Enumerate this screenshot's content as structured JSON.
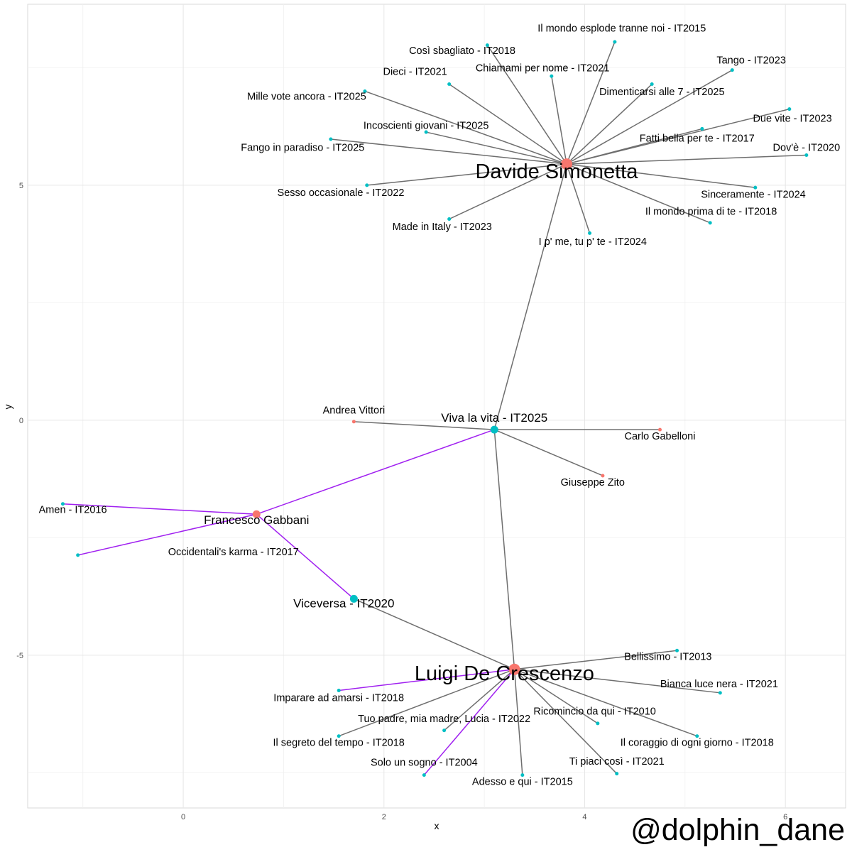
{
  "chart_data": {
    "type": "network",
    "xlabel": "x",
    "ylabel": "y",
    "xlim": [
      -1.55,
      6.6
    ],
    "ylim": [
      -8.25,
      8.85
    ],
    "xticks": [
      0,
      2,
      4,
      6
    ],
    "yticks": [
      -5,
      0,
      5
    ],
    "grid": true,
    "colors": {
      "person": "#f8766d",
      "song": "#00bfc4",
      "edge": "#6e6e6e",
      "highlight_edge": "#a020f0"
    },
    "nodes": [
      {
        "id": "ds",
        "label": "Davide Simonetta",
        "kind": "person",
        "size": "large",
        "x": 3.82,
        "y": 5.45,
        "lx": 3.72,
        "ly": 5.15
      },
      {
        "id": "lc",
        "label": "Luigi De Crescenzo",
        "kind": "person",
        "size": "large",
        "x": 3.3,
        "y": -5.3,
        "lx": 3.2,
        "ly": -5.53
      },
      {
        "id": "fg",
        "label": "Francesco Gabbani",
        "kind": "person",
        "size": "medium",
        "x": 0.73,
        "y": -2.0,
        "lx": 0.73,
        "ly": -2.21
      },
      {
        "id": "vv",
        "label": "Viva la vita - IT2025",
        "kind": "song",
        "size": "medium",
        "x": 3.1,
        "y": -0.2,
        "lx": 3.1,
        "ly": -0.03
      },
      {
        "id": "vc",
        "label": "Viceversa - IT2020",
        "kind": "song",
        "size": "medium",
        "x": 1.7,
        "y": -3.8,
        "lx": 1.6,
        "ly": -3.98
      },
      {
        "id": "av",
        "label": "Andrea Vittori",
        "kind": "person",
        "size": "small",
        "x": 1.7,
        "y": -0.03,
        "lx": 1.7,
        "ly": 0.14
      },
      {
        "id": "cg",
        "label": "Carlo Gabelloni",
        "kind": "person",
        "size": "small",
        "x": 4.75,
        "y": -0.2,
        "lx": 4.75,
        "ly": -0.41
      },
      {
        "id": "gz",
        "label": "Giuseppe Zito",
        "kind": "person",
        "size": "small",
        "x": 4.18,
        "y": -1.18,
        "lx": 4.08,
        "ly": -1.39
      },
      {
        "id": "amen",
        "label": "Amen - IT2016",
        "kind": "song",
        "size": "small",
        "x": -1.2,
        "y": -1.78,
        "lx": -1.1,
        "ly": -1.97
      },
      {
        "id": "occ",
        "label": "Occidentali's karma - IT2017",
        "kind": "song",
        "size": "small",
        "x": -1.05,
        "y": -2.87,
        "lx": 0.5,
        "ly": -2.87
      },
      {
        "id": "s1",
        "label": "Il mondo esplode tranne noi - IT2015",
        "kind": "song",
        "size": "small",
        "x": 4.3,
        "y": 8.05,
        "lx": 4.37,
        "ly": 8.27
      },
      {
        "id": "s2",
        "label": "Così sbagliato - IT2018",
        "kind": "song",
        "size": "small",
        "x": 3.03,
        "y": 7.98,
        "lx": 2.78,
        "ly": 7.79
      },
      {
        "id": "s3",
        "label": "Tango - IT2023",
        "kind": "song",
        "size": "small",
        "x": 5.47,
        "y": 7.45,
        "lx": 5.66,
        "ly": 7.59
      },
      {
        "id": "s4",
        "label": "Chiamami per nome - IT2021",
        "kind": "song",
        "size": "small",
        "x": 3.67,
        "y": 7.32,
        "lx": 3.58,
        "ly": 7.42
      },
      {
        "id": "s5",
        "label": "Dieci - IT2021",
        "kind": "song",
        "size": "small",
        "x": 2.65,
        "y": 7.15,
        "lx": 2.31,
        "ly": 7.35
      },
      {
        "id": "s6",
        "label": "Dimenticarsi alle 7 - IT2025",
        "kind": "song",
        "size": "small",
        "x": 4.67,
        "y": 7.15,
        "lx": 4.77,
        "ly": 6.92
      },
      {
        "id": "s7",
        "label": "Mille vote ancora - IT2025",
        "kind": "song",
        "size": "small",
        "x": 1.81,
        "y": 7.0,
        "lx": 1.23,
        "ly": 6.82
      },
      {
        "id": "s8",
        "label": "Due vite - IT2023",
        "kind": "song",
        "size": "small",
        "x": 6.04,
        "y": 6.62,
        "lx": 6.07,
        "ly": 6.35
      },
      {
        "id": "s9",
        "label": "Incoscienti giovani - IT2025",
        "kind": "song",
        "size": "small",
        "x": 2.42,
        "y": 6.13,
        "lx": 2.42,
        "ly": 6.2
      },
      {
        "id": "s10",
        "label": "Fatti bella per te - IT2017",
        "kind": "song",
        "size": "small",
        "x": 5.17,
        "y": 6.2,
        "lx": 5.12,
        "ly": 5.93
      },
      {
        "id": "s11",
        "label": "Fango in paradiso - IT2025",
        "kind": "song",
        "size": "small",
        "x": 1.47,
        "y": 5.98,
        "lx": 1.19,
        "ly": 5.73
      },
      {
        "id": "s12",
        "label": "Dov'è - IT2020",
        "kind": "song",
        "size": "small",
        "x": 6.21,
        "y": 5.64,
        "lx": 6.21,
        "ly": 5.73
      },
      {
        "id": "s13",
        "label": "Sesso occasionale - IT2022",
        "kind": "song",
        "size": "small",
        "x": 1.83,
        "y": 5.0,
        "lx": 1.57,
        "ly": 4.77
      },
      {
        "id": "s14",
        "label": "Sinceramente - IT2024",
        "kind": "song",
        "size": "small",
        "x": 5.7,
        "y": 4.95,
        "lx": 5.68,
        "ly": 4.73
      },
      {
        "id": "s15",
        "label": "Il mondo prima di te - IT2018",
        "kind": "song",
        "size": "small",
        "x": 5.25,
        "y": 4.2,
        "lx": 5.26,
        "ly": 4.37
      },
      {
        "id": "s16",
        "label": "Made in Italy - IT2023",
        "kind": "song",
        "size": "small",
        "x": 2.65,
        "y": 4.28,
        "lx": 2.58,
        "ly": 4.05
      },
      {
        "id": "s17",
        "label": "I p' me, tu p' te - IT2024",
        "kind": "song",
        "size": "small",
        "x": 4.05,
        "y": 3.98,
        "lx": 4.08,
        "ly": 3.73
      },
      {
        "id": "t1",
        "label": "Bellissimo - IT2013",
        "kind": "song",
        "size": "small",
        "x": 4.92,
        "y": -4.9,
        "lx": 4.83,
        "ly": -5.1
      },
      {
        "id": "t2",
        "label": "Bianca luce nera - IT2021",
        "kind": "song",
        "size": "small",
        "x": 5.35,
        "y": -5.8,
        "lx": 5.34,
        "ly": -5.68
      },
      {
        "id": "t3",
        "label": "Imparare ad amarsi - IT2018",
        "kind": "song",
        "size": "small",
        "x": 1.55,
        "y": -5.75,
        "lx": 1.55,
        "ly": -5.98
      },
      {
        "id": "t4",
        "label": "Ricomincio da qui - IT2010",
        "kind": "song",
        "size": "small",
        "x": 4.13,
        "y": -6.45,
        "lx": 4.1,
        "ly": -6.26
      },
      {
        "id": "t5",
        "label": "Tuo padre, mia madre, Lucia - IT2022",
        "kind": "song",
        "size": "small",
        "x": 2.6,
        "y": -6.6,
        "lx": 2.6,
        "ly": -6.42
      },
      {
        "id": "t6",
        "label": "Il coraggio di ogni giorno - IT2018",
        "kind": "song",
        "size": "small",
        "x": 5.12,
        "y": -6.72,
        "lx": 5.12,
        "ly": -6.93
      },
      {
        "id": "t7",
        "label": "Il segreto del tempo - IT2018",
        "kind": "song",
        "size": "small",
        "x": 1.55,
        "y": -6.72,
        "lx": 1.55,
        "ly": -6.93
      },
      {
        "id": "t8",
        "label": "Solo un sogno - IT2004",
        "kind": "song",
        "size": "small",
        "x": 2.4,
        "y": -7.55,
        "lx": 2.4,
        "ly": -7.35
      },
      {
        "id": "t9",
        "label": "Ti piaci così - IT2021",
        "kind": "song",
        "size": "small",
        "x": 4.32,
        "y": -7.52,
        "lx": 4.32,
        "ly": -7.33
      },
      {
        "id": "t10",
        "label": "Adesso e qui - IT2015",
        "kind": "song",
        "size": "small",
        "x": 3.38,
        "y": -7.55,
        "lx": 3.38,
        "ly": -7.76
      }
    ],
    "edges": [
      {
        "from": "ds",
        "to": "s1",
        "highlight": false
      },
      {
        "from": "ds",
        "to": "s2",
        "highlight": false
      },
      {
        "from": "ds",
        "to": "s3",
        "highlight": false
      },
      {
        "from": "ds",
        "to": "s4",
        "highlight": false
      },
      {
        "from": "ds",
        "to": "s5",
        "highlight": false
      },
      {
        "from": "ds",
        "to": "s6",
        "highlight": false
      },
      {
        "from": "ds",
        "to": "s7",
        "highlight": false
      },
      {
        "from": "ds",
        "to": "s8",
        "highlight": false
      },
      {
        "from": "ds",
        "to": "s9",
        "highlight": false
      },
      {
        "from": "ds",
        "to": "s10",
        "highlight": false
      },
      {
        "from": "ds",
        "to": "s11",
        "highlight": false
      },
      {
        "from": "ds",
        "to": "s12",
        "highlight": false
      },
      {
        "from": "ds",
        "to": "s13",
        "highlight": false
      },
      {
        "from": "ds",
        "to": "s14",
        "highlight": false
      },
      {
        "from": "ds",
        "to": "s15",
        "highlight": false
      },
      {
        "from": "ds",
        "to": "s16",
        "highlight": false
      },
      {
        "from": "ds",
        "to": "s17",
        "highlight": false
      },
      {
        "from": "ds",
        "to": "vv",
        "highlight": false
      },
      {
        "from": "vv",
        "to": "av",
        "highlight": false
      },
      {
        "from": "vv",
        "to": "cg",
        "highlight": false
      },
      {
        "from": "vv",
        "to": "gz",
        "highlight": false
      },
      {
        "from": "vv",
        "to": "lc",
        "highlight": false
      },
      {
        "from": "vv",
        "to": "fg",
        "highlight": true
      },
      {
        "from": "fg",
        "to": "amen",
        "highlight": true
      },
      {
        "from": "fg",
        "to": "occ",
        "highlight": true
      },
      {
        "from": "fg",
        "to": "vc",
        "highlight": true
      },
      {
        "from": "vc",
        "to": "lc",
        "highlight": false
      },
      {
        "from": "lc",
        "to": "t1",
        "highlight": false
      },
      {
        "from": "lc",
        "to": "t2",
        "highlight": false
      },
      {
        "from": "lc",
        "to": "t3",
        "highlight": true
      },
      {
        "from": "lc",
        "to": "t4",
        "highlight": false
      },
      {
        "from": "lc",
        "to": "t5",
        "highlight": false
      },
      {
        "from": "lc",
        "to": "t6",
        "highlight": false
      },
      {
        "from": "lc",
        "to": "t7",
        "highlight": false
      },
      {
        "from": "lc",
        "to": "t8",
        "highlight": true
      },
      {
        "from": "lc",
        "to": "t9",
        "highlight": false
      },
      {
        "from": "lc",
        "to": "t10",
        "highlight": false
      }
    ]
  },
  "watermark": "@dolphin_dane"
}
